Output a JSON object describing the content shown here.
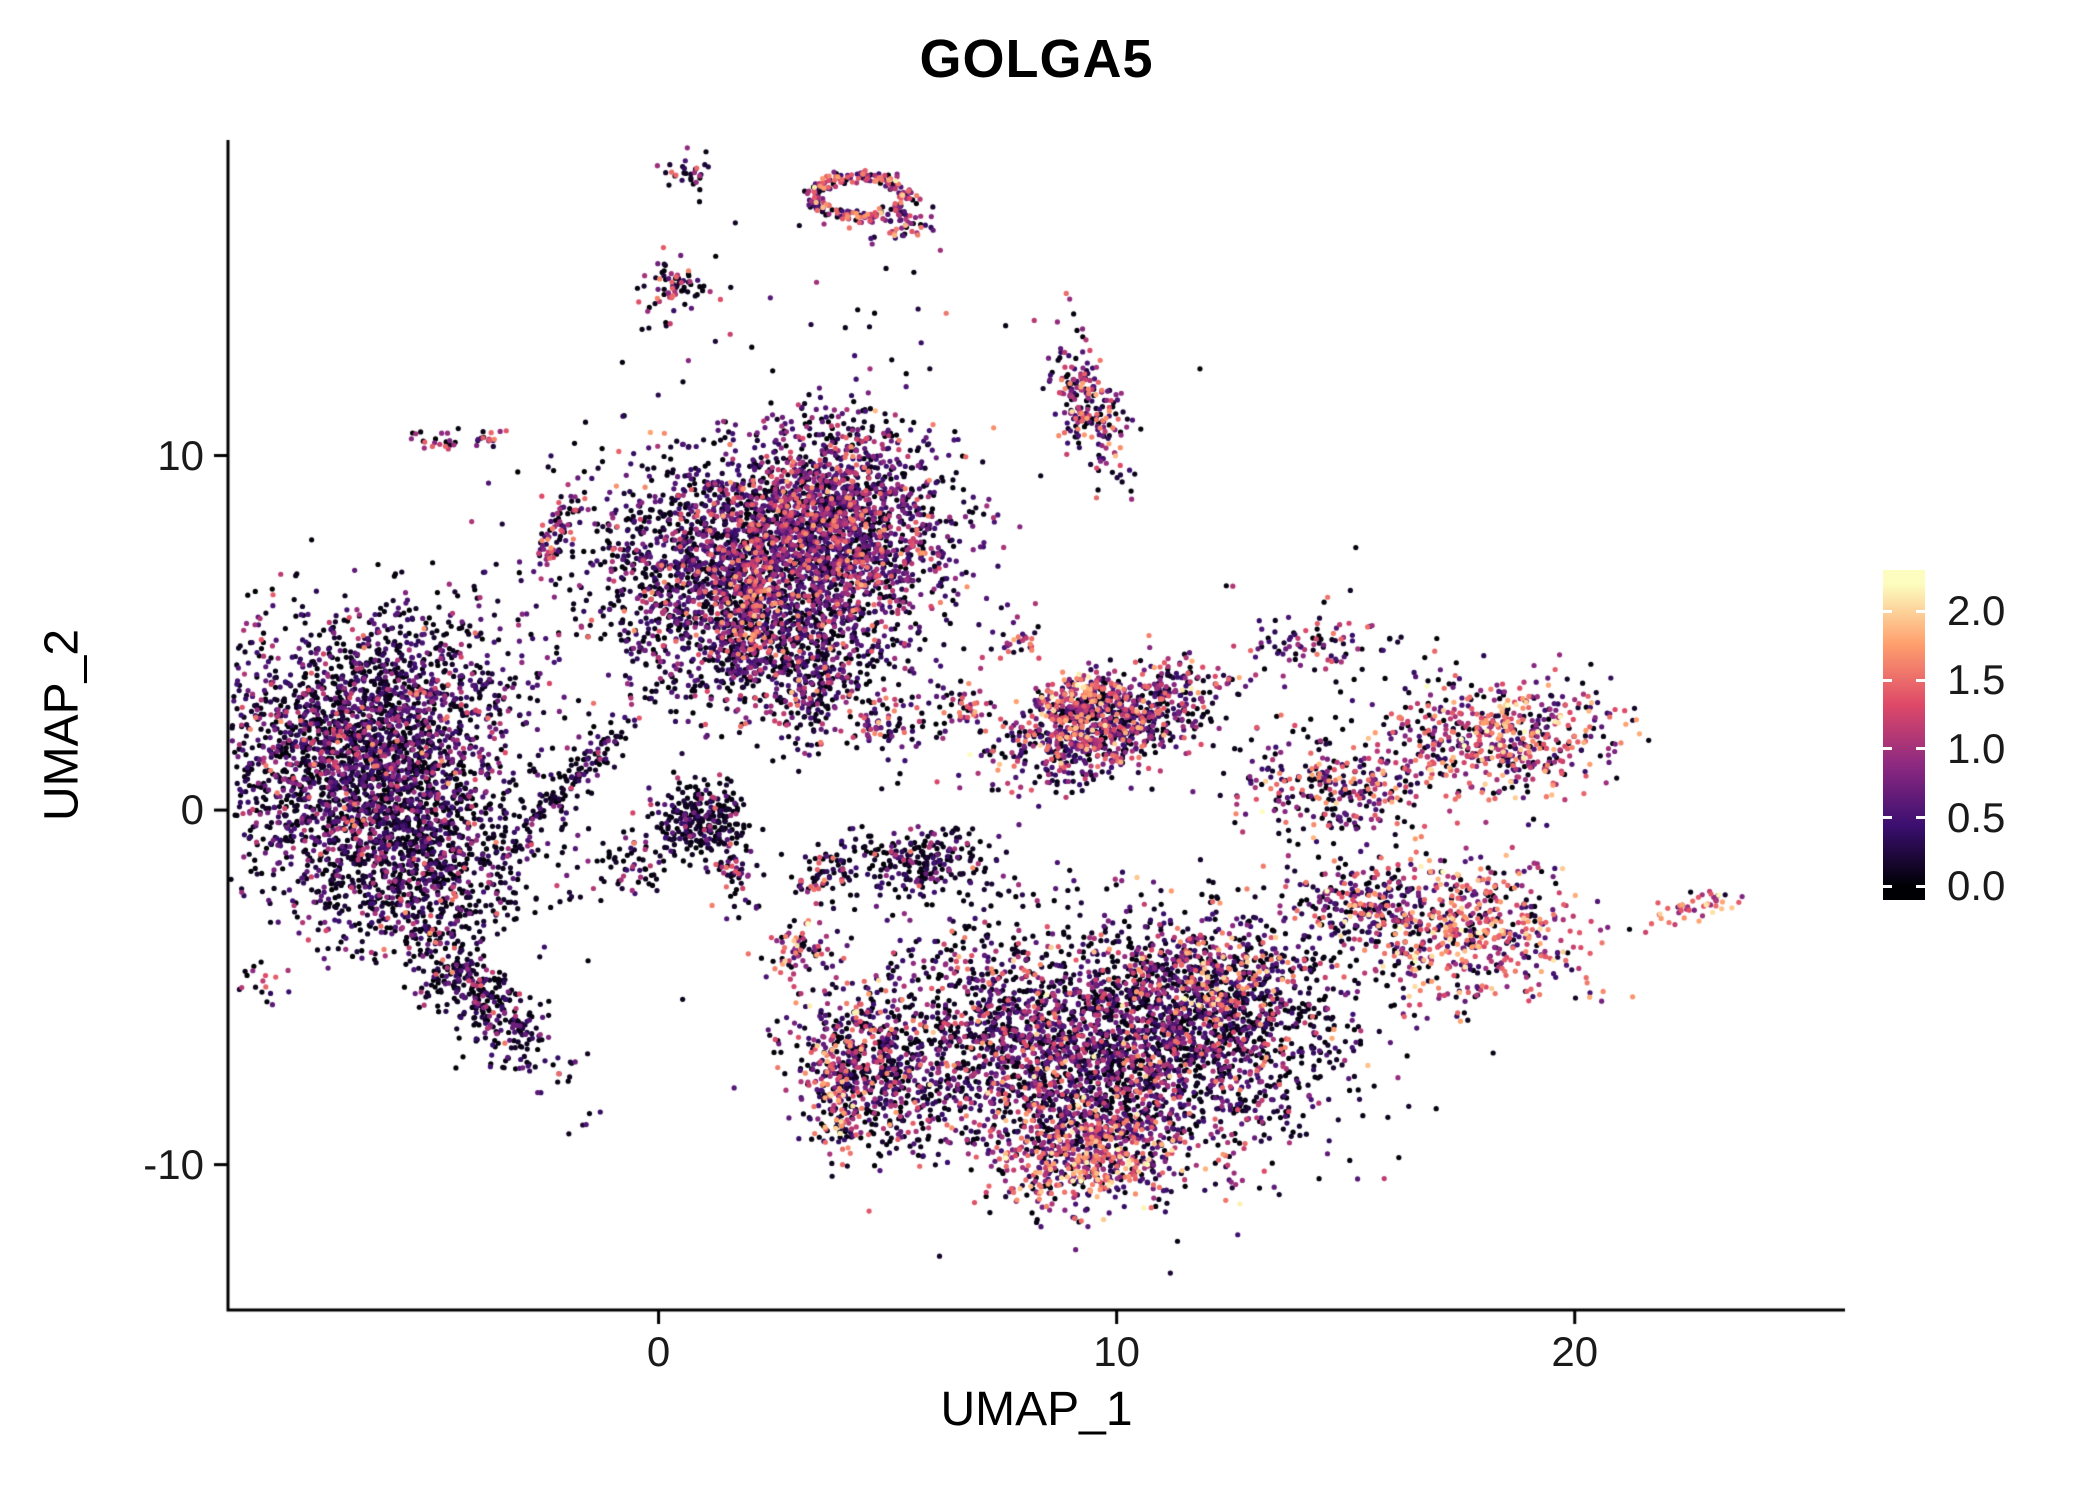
{
  "chart_data": {
    "type": "scatter",
    "title": "GOLGA5",
    "xlabel": "UMAP_1",
    "ylabel": "UMAP_2",
    "xlim": [
      -9.4,
      25.9
    ],
    "ylim": [
      -14.1,
      18.9
    ],
    "x_ticks": [
      0,
      10,
      20
    ],
    "y_ticks": [
      -10,
      0,
      10
    ],
    "grid": false,
    "background": "#ffffff",
    "point_radius_px": 2.6,
    "n_points_approx": 17900,
    "color_scale": {
      "name": "magma",
      "domain": [
        0,
        2.2
      ],
      "stops": [
        [
          0.0,
          "#000004"
        ],
        [
          0.2,
          "#3b0f70"
        ],
        [
          0.4,
          "#8c2981"
        ],
        [
          0.6,
          "#de4968"
        ],
        [
          0.8,
          "#fe9f6d"
        ],
        [
          1.0,
          "#fcfdbf"
        ]
      ]
    },
    "representation": "density-clusters",
    "expr_bins": {
      "bases": [
        0,
        0.5,
        1.0,
        1.5,
        1.9
      ],
      "spreads": [
        0.1,
        0.15,
        0.15,
        0.15,
        0.18
      ]
    },
    "clusters": [
      {
        "name": "left-main",
        "cx": -6.3,
        "cy": 1.8,
        "sx": 1.6,
        "sy": 2.0,
        "rot": -20,
        "n": 2600,
        "expr": [
          0.55,
          0.3,
          0.12,
          0.03,
          0
        ]
      },
      {
        "name": "left-lower",
        "cx": -5.2,
        "cy": -1.5,
        "sx": 1.3,
        "sy": 1.3,
        "rot": 0,
        "n": 900,
        "expr": [
          0.62,
          0.26,
          0.1,
          0.02,
          0
        ]
      },
      {
        "name": "left-tail",
        "cx": -3.9,
        "cy": -5.2,
        "sx": 1.5,
        "sy": 0.45,
        "rot": -55,
        "n": 350,
        "expr": [
          0.65,
          0.25,
          0.08,
          0.02,
          0
        ]
      },
      {
        "name": "left-tiny-low",
        "cx": -8.6,
        "cy": -4.9,
        "sx": 0.28,
        "sy": 0.35,
        "rot": 0,
        "n": 18,
        "expr": [
          0.5,
          0.2,
          0.2,
          0.1,
          0
        ]
      },
      {
        "name": "left-small-low",
        "cx": -4.3,
        "cy": -4.9,
        "sx": 0.42,
        "sy": 0.3,
        "rot": 0,
        "n": 40,
        "expr": [
          0.7,
          0.2,
          0.08,
          0.02,
          0
        ]
      },
      {
        "name": "diag-connector",
        "cx": -1.9,
        "cy": 0.8,
        "sx": 1.3,
        "sy": 0.22,
        "rot": 55,
        "n": 150,
        "expr": [
          0.75,
          0.18,
          0.06,
          0.01,
          0
        ]
      },
      {
        "name": "center-knot",
        "cx": 0.9,
        "cy": -0.3,
        "sx": 0.55,
        "sy": 0.5,
        "rot": 0,
        "n": 280,
        "expr": [
          0.8,
          0.15,
          0.04,
          0.01,
          0
        ]
      },
      {
        "name": "top-left-lobe",
        "cx": 1.3,
        "cy": 7.0,
        "sx": 1.5,
        "sy": 1.5,
        "rot": 0,
        "n": 1400,
        "expr": [
          0.5,
          0.3,
          0.15,
          0.05,
          0
        ]
      },
      {
        "name": "top-right-lobe",
        "cx": 3.8,
        "cy": 8.0,
        "sx": 1.3,
        "sy": 1.4,
        "rot": 0,
        "n": 2000,
        "expr": [
          0.35,
          0.35,
          0.22,
          0.08,
          0
        ]
      },
      {
        "name": "top-lower-ext",
        "cx": 2.6,
        "cy": 4.6,
        "sx": 1.6,
        "sy": 1.0,
        "rot": 0,
        "n": 700,
        "expr": [
          0.55,
          0.28,
          0.12,
          0.05,
          0
        ]
      },
      {
        "name": "top-pink-streak",
        "cx": 2.0,
        "cy": 5.6,
        "sx": 0.25,
        "sy": 0.85,
        "rot": 0,
        "n": 120,
        "expr": [
          0.1,
          0.2,
          0.3,
          0.35,
          0.05
        ]
      },
      {
        "name": "below-top-stream",
        "cx": 3.1,
        "cy": 3.2,
        "sx": 0.6,
        "sy": 0.8,
        "rot": 0,
        "n": 150,
        "expr": [
          0.5,
          0.25,
          0.15,
          0.09,
          0.01
        ]
      },
      {
        "name": "top-ring",
        "shape": "ring",
        "cx": 4.4,
        "cy": 17.3,
        "rx": 0.95,
        "ry": 0.6,
        "thick": 0.15,
        "n": 220,
        "expr": [
          0.2,
          0.2,
          0.25,
          0.3,
          0.05
        ]
      },
      {
        "name": "top-ring-hook",
        "cx": 5.4,
        "cy": 16.5,
        "sx": 0.35,
        "sy": 0.2,
        "rot": 30,
        "n": 45,
        "expr": [
          0.2,
          0.2,
          0.25,
          0.3,
          0.05
        ]
      },
      {
        "name": "top-small",
        "cx": 0.65,
        "cy": 18.0,
        "sx": 0.22,
        "sy": 0.38,
        "rot": 0,
        "n": 30,
        "expr": [
          0.5,
          0.2,
          0.15,
          0.15,
          0
        ]
      },
      {
        "name": "upper-small",
        "cx": 0.3,
        "cy": 14.8,
        "sx": 0.38,
        "sy": 0.38,
        "rot": 0,
        "n": 70,
        "expr": [
          0.45,
          0.2,
          0.2,
          0.15,
          0
        ]
      },
      {
        "name": "upper-right-strip",
        "cx": 9.4,
        "cy": 11.5,
        "sx": 0.35,
        "sy": 1.0,
        "rot": 14,
        "n": 220,
        "expr": [
          0.25,
          0.25,
          0.25,
          0.2,
          0.05
        ]
      },
      {
        "name": "tiny-pair-a",
        "cx": -4.8,
        "cy": 10.4,
        "sx": 0.3,
        "sy": 0.16,
        "rot": 0,
        "n": 22,
        "expr": [
          0.3,
          0.2,
          0.3,
          0.2,
          0
        ]
      },
      {
        "name": "tiny-pair-b",
        "cx": -3.7,
        "cy": 10.5,
        "sx": 0.2,
        "sy": 0.15,
        "rot": 0,
        "n": 16,
        "expr": [
          0.3,
          0.2,
          0.3,
          0.2,
          0
        ]
      },
      {
        "name": "left-diag-small",
        "cx": -2.2,
        "cy": 7.9,
        "sx": 0.55,
        "sy": 0.18,
        "rot": 62,
        "n": 70,
        "expr": [
          0.35,
          0.2,
          0.2,
          0.25,
          0
        ]
      },
      {
        "name": "mid-band",
        "cx": 9.8,
        "cy": 2.4,
        "sx": 1.4,
        "sy": 0.6,
        "rot": 28,
        "n": 900,
        "expr": [
          0.35,
          0.3,
          0.2,
          0.13,
          0.02
        ]
      },
      {
        "name": "mid-band-hot",
        "cx": 9.1,
        "cy": 3.2,
        "sx": 0.5,
        "sy": 0.3,
        "rot": 28,
        "n": 150,
        "expr": [
          0.05,
          0.15,
          0.3,
          0.4,
          0.1
        ]
      },
      {
        "name": "mid-arrow",
        "cx": 6.6,
        "cy": 2.9,
        "sx": 0.35,
        "sy": 0.3,
        "rot": 0,
        "n": 45,
        "expr": [
          0.4,
          0.2,
          0.2,
          0.2,
          0
        ]
      },
      {
        "name": "mid-top-specks",
        "cx": 7.9,
        "cy": 4.8,
        "sx": 0.3,
        "sy": 0.25,
        "rot": 0,
        "n": 30,
        "expr": [
          0.3,
          0.2,
          0.2,
          0.3,
          0
        ]
      },
      {
        "name": "below-top-specks",
        "cx": 5.0,
        "cy": 2.3,
        "sx": 0.5,
        "sy": 0.5,
        "rot": 0,
        "n": 80,
        "expr": [
          0.35,
          0.25,
          0.2,
          0.18,
          0.02
        ]
      },
      {
        "name": "center-dark",
        "cx": 5.5,
        "cy": -1.4,
        "sx": 0.8,
        "sy": 0.5,
        "rot": 0,
        "n": 250,
        "expr": [
          0.7,
          0.2,
          0.08,
          0.02,
          0
        ]
      },
      {
        "name": "center-small-a",
        "cx": 3.5,
        "cy": -1.8,
        "sx": 0.35,
        "sy": 0.35,
        "rot": 0,
        "n": 60,
        "expr": [
          0.6,
          0.2,
          0.1,
          0.1,
          0
        ]
      },
      {
        "name": "center-small-b",
        "cx": 1.7,
        "cy": -1.9,
        "sx": 0.3,
        "sy": 0.45,
        "rot": 0,
        "n": 50,
        "expr": [
          0.45,
          0.2,
          0.15,
          0.2,
          0
        ]
      },
      {
        "name": "small-pink-left",
        "cx": 3.2,
        "cy": -4.0,
        "sx": 0.4,
        "sy": 0.45,
        "rot": 0,
        "n": 70,
        "expr": [
          0.3,
          0.2,
          0.2,
          0.25,
          0.05
        ]
      },
      {
        "name": "left-sparse-dark",
        "cx": -0.6,
        "cy": -1.6,
        "sx": 0.45,
        "sy": 0.5,
        "rot": 0,
        "n": 60,
        "expr": [
          0.7,
          0.2,
          0.08,
          0.02,
          0
        ]
      },
      {
        "name": "right-mid-small",
        "cx": 14.3,
        "cy": 4.7,
        "sx": 0.7,
        "sy": 0.4,
        "rot": 0,
        "n": 70,
        "expr": [
          0.45,
          0.2,
          0.15,
          0.2,
          0
        ]
      },
      {
        "name": "right-pair",
        "cx": 14.8,
        "cy": 0.6,
        "sx": 1.2,
        "sy": 0.7,
        "rot": 0,
        "n": 300,
        "expr": [
          0.35,
          0.25,
          0.2,
          0.17,
          0.03
        ]
      },
      {
        "name": "right-large",
        "cx": 18.4,
        "cy": 2.1,
        "sx": 1.2,
        "sy": 0.8,
        "rot": 0,
        "n": 550,
        "expr": [
          0.2,
          0.2,
          0.25,
          0.25,
          0.1
        ]
      },
      {
        "name": "right-lower",
        "cx": 17.6,
        "cy": -3.4,
        "sx": 1.3,
        "sy": 1.0,
        "rot": -10,
        "n": 600,
        "expr": [
          0.2,
          0.2,
          0.22,
          0.28,
          0.1
        ]
      },
      {
        "name": "right-lower-ext",
        "cx": 15.3,
        "cy": -2.6,
        "sx": 0.9,
        "sy": 0.6,
        "rot": 0,
        "n": 200,
        "expr": [
          0.45,
          0.25,
          0.15,
          0.13,
          0.02
        ]
      },
      {
        "name": "far-right-bright",
        "cx": 22.7,
        "cy": -2.7,
        "sx": 0.45,
        "sy": 0.22,
        "rot": 15,
        "n": 45,
        "expr": [
          0.05,
          0.1,
          0.2,
          0.35,
          0.3
        ]
      },
      {
        "name": "bottom-core",
        "cx": 9.0,
        "cy": -7.2,
        "sx": 2.2,
        "sy": 1.5,
        "rot": -15,
        "n": 2400,
        "expr": [
          0.45,
          0.3,
          0.17,
          0.07,
          0.01
        ]
      },
      {
        "name": "bottom-right-dark",
        "cx": 12.3,
        "cy": -5.9,
        "sx": 1.5,
        "sy": 1.2,
        "rot": 0,
        "n": 900,
        "expr": [
          0.6,
          0.25,
          0.1,
          0.04,
          0.01
        ]
      },
      {
        "name": "bottom-bright",
        "cx": 9.3,
        "cy": -9.9,
        "sx": 1.0,
        "sy": 0.7,
        "rot": 0,
        "n": 450,
        "expr": [
          0.15,
          0.2,
          0.25,
          0.28,
          0.12
        ]
      },
      {
        "name": "bottom-left-dark",
        "cx": 4.7,
        "cy": -7.3,
        "sx": 0.9,
        "sy": 1.1,
        "rot": 0,
        "n": 500,
        "expr": [
          0.55,
          0.25,
          0.12,
          0.07,
          0.01
        ]
      },
      {
        "name": "bottom-left-pink",
        "cx": 4.0,
        "cy": -7.8,
        "sx": 0.35,
        "sy": 1.1,
        "rot": 0,
        "n": 150,
        "expr": [
          0.1,
          0.2,
          0.3,
          0.3,
          0.1
        ]
      },
      {
        "name": "bottom-upper-sparse",
        "cx": 9.5,
        "cy": -4.0,
        "sx": 2.5,
        "sy": 1.0,
        "rot": 0,
        "n": 300,
        "expr": [
          0.6,
          0.2,
          0.12,
          0.07,
          0.01
        ]
      },
      {
        "name": "bottom-mid-hot",
        "cx": 12.0,
        "cy": -4.6,
        "sx": 1.0,
        "sy": 0.8,
        "rot": 0,
        "n": 250,
        "expr": [
          0.2,
          0.2,
          0.25,
          0.27,
          0.08
        ]
      },
      {
        "name": "top-noise",
        "cx": 4.0,
        "cy": 13.5,
        "sx": 2.5,
        "sy": 1.8,
        "rot": 0,
        "n": 40,
        "expr": [
          0.7,
          0.15,
          0.1,
          0.05,
          0
        ]
      },
      {
        "name": "right-noise",
        "cx": 15.5,
        "cy": 3.2,
        "sx": 1.6,
        "sy": 1.6,
        "rot": 0,
        "n": 60,
        "expr": [
          0.7,
          0.15,
          0.1,
          0.05,
          0
        ]
      }
    ]
  },
  "legend": {
    "position": "right",
    "range": [
      0,
      2.2
    ],
    "tick_labels": [
      "2.0",
      "1.5",
      "1.0",
      "0.5",
      "0.0"
    ],
    "tick_values": [
      2.0,
      1.5,
      1.0,
      0.5,
      0.0
    ]
  }
}
